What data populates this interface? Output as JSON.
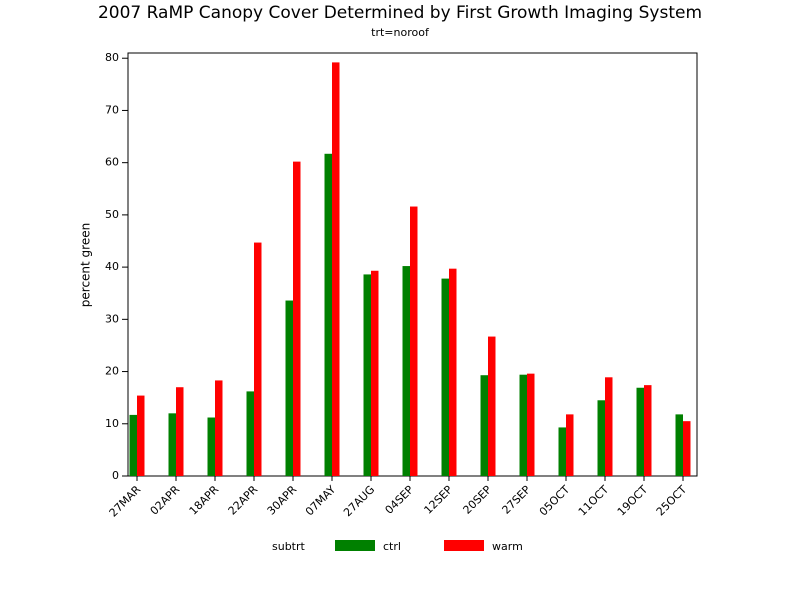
{
  "chart_data": {
    "type": "bar",
    "title": "2007 RaMP Canopy Cover Determined by First Growth Imaging System",
    "subtitle": "trt=noroof",
    "y_label": "percent green",
    "legend_title": "subtrt",
    "categories": [
      "27MAR",
      "02APR",
      "18APR",
      "22APR",
      "30APR",
      "07MAY",
      "27AUG",
      "04SEP",
      "12SEP",
      "20SEP",
      "27SEP",
      "05OCT",
      "11OCT",
      "19OCT",
      "25OCT"
    ],
    "series": [
      {
        "name": "ctrl",
        "color": "#008000",
        "values": [
          11.7,
          12.0,
          11.2,
          16.2,
          33.6,
          61.7,
          38.6,
          40.2,
          37.8,
          19.3,
          19.4,
          9.3,
          14.5,
          16.9,
          11.8
        ]
      },
      {
        "name": "warm",
        "color": "#ff0000",
        "values": [
          15.4,
          17.0,
          18.3,
          44.7,
          60.2,
          79.2,
          39.3,
          51.6,
          39.7,
          26.7,
          19.6,
          11.8,
          18.9,
          17.4,
          10.5
        ]
      }
    ],
    "ylim": [
      0,
      81
    ],
    "yticks": [
      0,
      10,
      20,
      30,
      40,
      50,
      60,
      70,
      80
    ],
    "grid": false
  }
}
